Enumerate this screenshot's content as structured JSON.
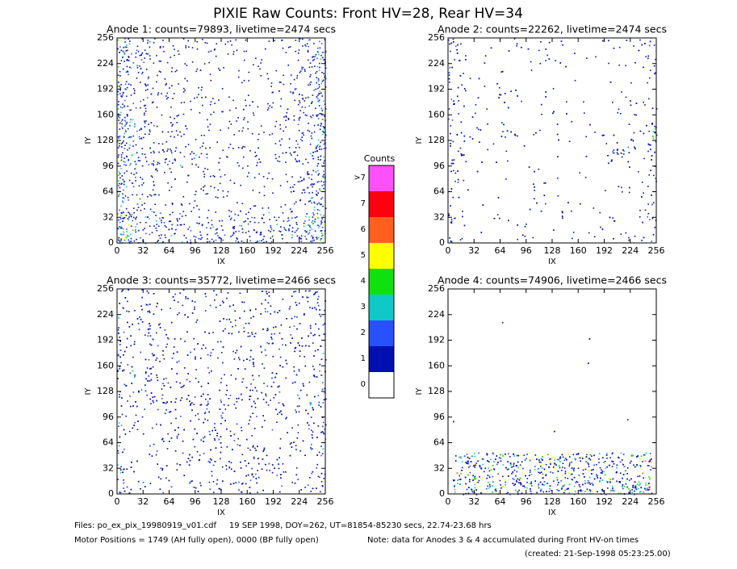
{
  "title": "PIXIE Raw Counts:  Front HV=28, Rear HV=34",
  "chart_data": [
    {
      "type": "heatmap",
      "title": "Anode 1: counts=79893, livetime=2474 secs",
      "x_label": "IX",
      "y_label": "IY",
      "xlim": [
        0,
        256
      ],
      "ylim": [
        0,
        256
      ],
      "xticks": [
        0,
        32,
        64,
        96,
        128,
        160,
        192,
        224,
        256
      ],
      "yticks": [
        0,
        32,
        64,
        96,
        128,
        160,
        192,
        224,
        256
      ]
    },
    {
      "type": "heatmap",
      "title": "Anode 2: counts=22262, livetime=2474 secs",
      "x_label": "IX",
      "y_label": "IY",
      "xlim": [
        0,
        256
      ],
      "ylim": [
        0,
        256
      ],
      "xticks": [
        0,
        32,
        64,
        96,
        128,
        160,
        192,
        224,
        256
      ],
      "yticks": [
        0,
        32,
        64,
        96,
        128,
        160,
        192,
        224,
        256
      ]
    },
    {
      "type": "heatmap",
      "title": "Anode 3: counts=35772, livetime=2466 secs",
      "x_label": "IX",
      "y_label": "IY",
      "xlim": [
        0,
        256
      ],
      "ylim": [
        0,
        256
      ],
      "xticks": [
        0,
        32,
        64,
        96,
        128,
        160,
        192,
        224,
        256
      ],
      "yticks": [
        0,
        32,
        64,
        96,
        128,
        160,
        192,
        224,
        256
      ]
    },
    {
      "type": "heatmap",
      "title": "Anode 4: counts=74906, livetime=2466 secs",
      "x_label": "IX",
      "y_label": "IY",
      "xlim": [
        0,
        256
      ],
      "ylim": [
        0,
        256
      ],
      "xticks": [
        0,
        32,
        64,
        96,
        128,
        160,
        192,
        224,
        256
      ],
      "yticks": [
        0,
        32,
        64,
        96,
        128,
        160,
        192,
        224,
        256
      ]
    }
  ],
  "colorbar": {
    "title": "Counts",
    "ticks": [
      0,
      1,
      2,
      3,
      4,
      5,
      6,
      7,
      {
        "value": 8,
        "label": ">7"
      }
    ],
    "colors": [
      "#ffffff",
      "#0010b0",
      "#2850ff",
      "#10c8c8",
      "#10e010",
      "#ffff00",
      "#ff6020",
      "#ff0010",
      "#ff50ff"
    ]
  },
  "footer": {
    "files": "Files: po_ex_pix_19980919_v01.cdf     19 SEP 1998, DOY=262, UT=81854-85230 secs, 22.74-23.68 hrs",
    "motor": "Motor Positions = 1749 (AH fully open), 0000 (BP fully open)",
    "note": "Note: data for Anodes 3 & 4 accumulated during Front HV-on times",
    "created": "(created: 21-Sep-1998 05:23:25.00)"
  }
}
